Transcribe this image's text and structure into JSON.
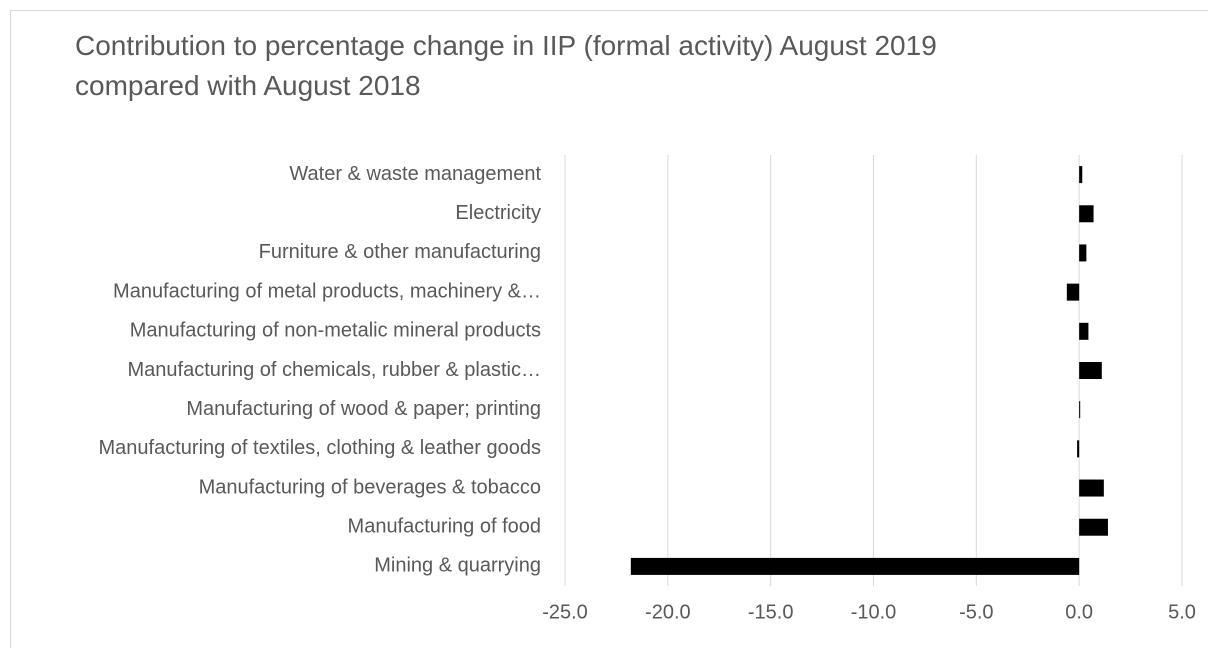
{
  "chart_data": {
    "type": "barh",
    "title": "Contribution to percentage change in IIP (formal activity) August 2019 compared with August 2018",
    "categories": [
      "Water & waste management",
      "Electricity",
      "Furniture & other manufacturing",
      "Manufacturing of metal products, machinery &…",
      "Manufacturing of non-metalic mineral products",
      "Manufacturing of chemicals, rubber & plastic…",
      "Manufacturing of wood & paper; printing",
      "Manufacturing of textiles, clothing & leather goods",
      "Manufacturing of beverages & tobacco",
      "Manufacturing of food",
      "Mining & quarrying"
    ],
    "values": [
      0.15,
      0.7,
      0.35,
      -0.6,
      0.45,
      1.1,
      0.05,
      -0.1,
      1.2,
      1.4,
      -21.8
    ],
    "color": "#000000",
    "xlim": [
      -25,
      5
    ],
    "xticks": [
      {
        "value": -25,
        "label": "-25.0"
      },
      {
        "value": -20,
        "label": "-20.0"
      },
      {
        "value": -15,
        "label": "-15.0"
      },
      {
        "value": -10,
        "label": "-10.0"
      },
      {
        "value": -5,
        "label": "-5.0"
      },
      {
        "value": 0,
        "label": "0.0"
      },
      {
        "value": 5,
        "label": "5.0"
      }
    ],
    "grid": true
  }
}
